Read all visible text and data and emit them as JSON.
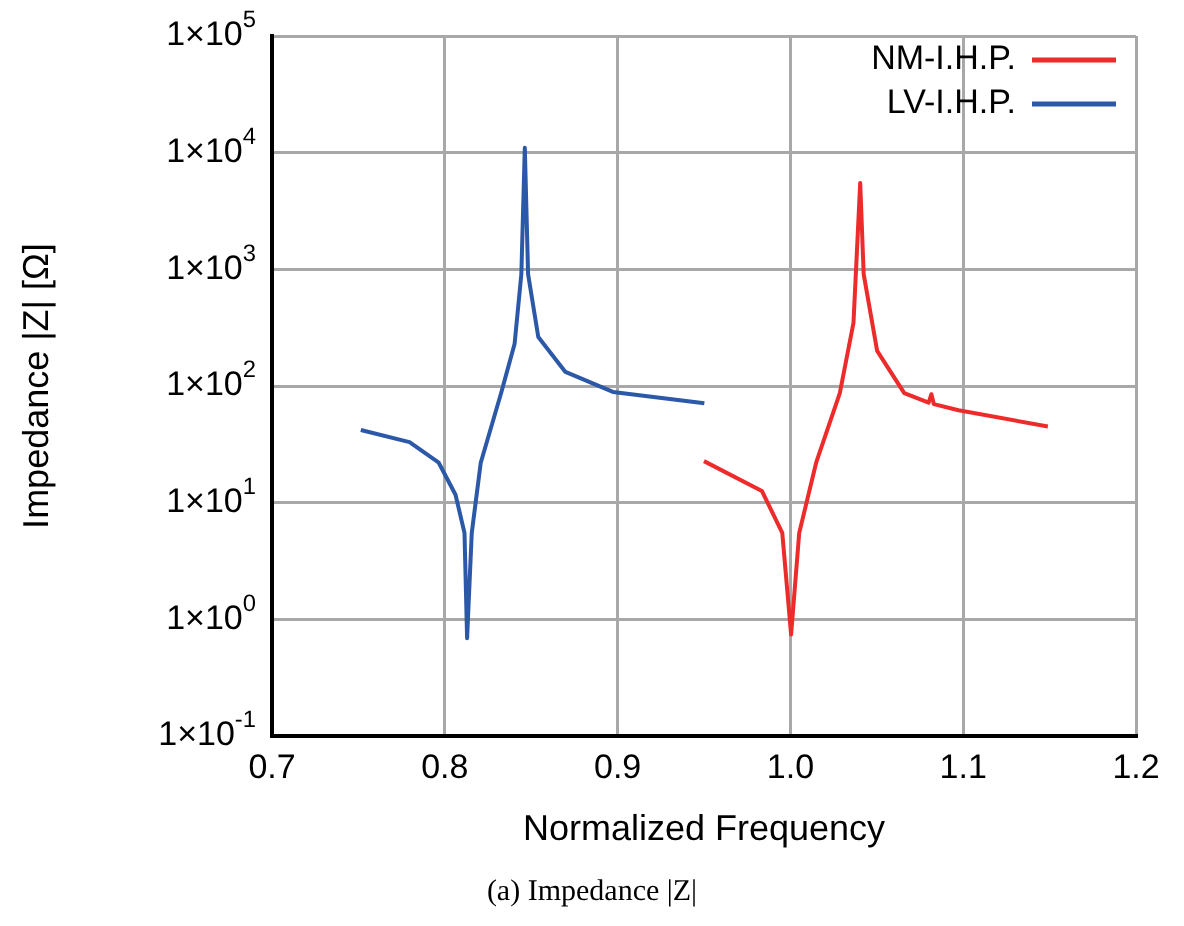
{
  "chart_data": {
    "type": "line",
    "xlabel": "Normalized Frequency",
    "ylabel": "Impedance |Z| [Ω]",
    "annotations": [
      "(a) Impedance |Z|"
    ],
    "xlim": [
      0.7,
      1.2
    ],
    "xticks": [
      0.7,
      0.8,
      0.9,
      {
        "value": 1,
        "label": "1.0"
      },
      1.1,
      1.2
    ],
    "ylim": [
      0.1,
      100000
    ],
    "log": "y",
    "yticks": [
      {
        "value": 0.1,
        "label": "1×10$^{-1}$"
      },
      {
        "value": 1,
        "label": "1×10$^{0}$"
      },
      {
        "value": 10,
        "label": "1×10$^{1}$"
      },
      {
        "value": 100,
        "label": "1×10$^{2}$"
      },
      {
        "value": 1000,
        "label": "1×10$^{3}$"
      },
      {
        "value": 10000,
        "label": "1×10$^{4}$"
      },
      {
        "value": 100000,
        "label": "1×10$^{5}$"
      }
    ],
    "grid": true,
    "legend": "top right",
    "marker": "none",
    "line_style": "solid",
    "series": [
      {
        "name": "NM-I.H.P.",
        "color": "#ee2b2b",
        "x": [
          0.95,
          0.9835,
          0.9953,
          1.0004,
          1.0051,
          1.0149,
          1.0286,
          1.0365,
          1.0404,
          1.0424,
          1.0502,
          1.0659,
          1.08,
          1.0816,
          1.083,
          1.0973,
          1.149
        ],
        "values": [
          22.7,
          12.6,
          5.5,
          0.74,
          5.5,
          22,
          87,
          347,
          5500,
          910,
          200,
          87,
          72,
          85,
          70,
          62,
          45
        ]
      },
      {
        "name": "LV-I.H.P.",
        "color": "#2c58a8",
        "x": [
          0.7514,
          0.7796,
          0.7965,
          0.8062,
          0.8114,
          0.8129,
          0.8156,
          0.8208,
          0.8326,
          0.8404,
          0.8443,
          0.8463,
          0.8482,
          0.8541,
          0.8698,
          0.8973,
          0.9502
        ],
        "values": [
          42,
          33,
          22,
          11.7,
          5.5,
          0.69,
          5.5,
          22,
          87,
          230,
          910,
          11000,
          910,
          263,
          132,
          89,
          71
        ]
      }
    ]
  }
}
